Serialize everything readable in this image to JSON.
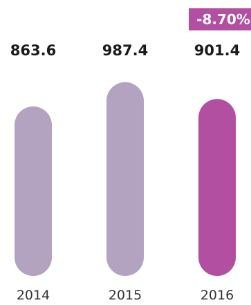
{
  "chart_data": {
    "type": "bar",
    "categories": [
      "2014",
      "2015",
      "2016"
    ],
    "values": [
      863.6,
      987.4,
      901.4
    ],
    "value_labels": [
      "863.6",
      "987.4",
      "901.4"
    ],
    "ylim": [
      0,
      1050
    ],
    "badge": {
      "text": "-8.70%",
      "category": "2016",
      "color": "#b24fa0"
    },
    "colors": {
      "past": "#b3a3c0",
      "current": "#b24fa0"
    },
    "grid": false,
    "legend": "none"
  }
}
